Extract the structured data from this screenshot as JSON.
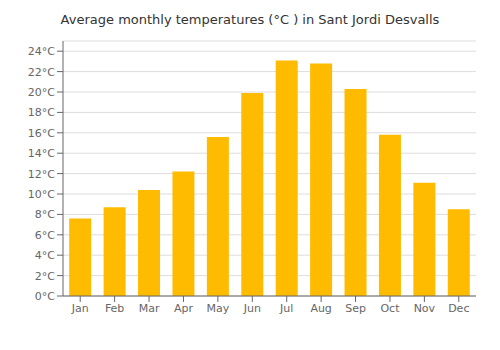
{
  "chart_data": {
    "type": "bar",
    "title": "Average monthly temperatures (°C ) in Sant Jordi Desvalls",
    "categories": [
      "Jan",
      "Feb",
      "Mar",
      "Apr",
      "May",
      "Jun",
      "Jul",
      "Aug",
      "Sep",
      "Oct",
      "Nov",
      "Dec"
    ],
    "values": [
      7.6,
      8.7,
      10.4,
      12.2,
      15.6,
      19.9,
      23.1,
      22.8,
      20.3,
      15.8,
      11.1,
      8.5
    ],
    "color": "#FFBB00",
    "ylim": [
      0,
      25
    ],
    "yticks": [
      {
        "value": 0,
        "label": "0°C"
      },
      {
        "value": 2,
        "label": "2°C"
      },
      {
        "value": 4,
        "label": "4°C"
      },
      {
        "value": 6,
        "label": "6°C"
      },
      {
        "value": 8,
        "label": "8°C"
      },
      {
        "value": 10,
        "label": "10°C"
      },
      {
        "value": 12,
        "label": "12°C"
      },
      {
        "value": 14,
        "label": "14°C"
      },
      {
        "value": 16,
        "label": "16°C"
      },
      {
        "value": 18,
        "label": "18°C"
      },
      {
        "value": 20,
        "label": "20°C"
      },
      {
        "value": 22,
        "label": "22°C"
      },
      {
        "value": 24,
        "label": "24°C"
      }
    ],
    "grid": true
  }
}
